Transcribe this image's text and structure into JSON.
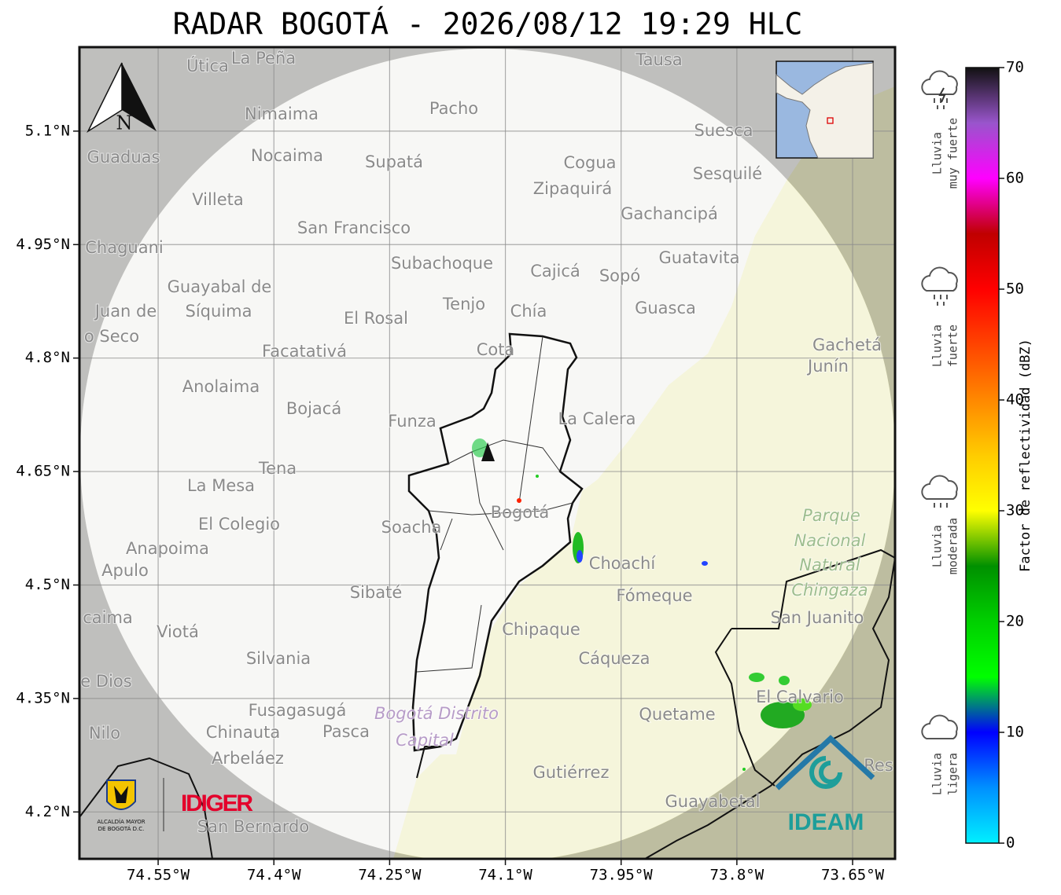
{
  "title": "RADAR BOGOTÁ - 2026/08/12 19:29 HLC",
  "map": {
    "lon_range": [
      -74.652,
      -73.595
    ],
    "lat_range": [
      4.138,
      5.211
    ],
    "lat_ticks": [
      {
        "value": 4.2,
        "label": "4.2°N"
      },
      {
        "value": 4.35,
        "label": "4.35°N"
      },
      {
        "value": 4.5,
        "label": "4.5°N"
      },
      {
        "value": 4.65,
        "label": "4.65°N"
      },
      {
        "value": 4.8,
        "label": "4.8°N"
      },
      {
        "value": 4.95,
        "label": "4.95°N"
      },
      {
        "value": 5.1,
        "label": "5.1°N"
      }
    ],
    "lon_ticks": [
      {
        "value": -74.55,
        "label": "74.55°W"
      },
      {
        "value": -74.4,
        "label": "74.4°W"
      },
      {
        "value": -74.25,
        "label": "74.25°W"
      },
      {
        "value": -74.1,
        "label": "74.1°W"
      },
      {
        "value": -73.95,
        "label": "73.95°W"
      },
      {
        "value": -73.8,
        "label": "73.8°W"
      },
      {
        "value": -73.65,
        "label": "73.65°W"
      }
    ],
    "north": "N",
    "places": [
      "Útica",
      "La Peña",
      "Tausa",
      "Pacho",
      "Nimaima",
      "Suesca",
      "Guaduas",
      "Nocaima",
      "Supatá",
      "Cogua",
      "Sesquilé",
      "Zipaquirá",
      "Villeta",
      "Gachancipá",
      "San Francisco",
      "Chaguani",
      "Guatavita",
      "Subachoque",
      "Cajicá",
      "Sopó",
      "Guayabal de",
      "Síquima",
      "Tenjo",
      "Chía",
      "Guasca",
      "Juan de",
      "El Rosal",
      "o Seco",
      "Cota",
      "Gachetá",
      "Junín",
      "Facatativá",
      "Anolaima",
      "Bojacá",
      "Funza",
      "La Calera",
      "Tena",
      "La Mesa",
      "Bogotá",
      "Parque",
      "El Colegio",
      "Soacha",
      "Nacional",
      "Anapoima",
      "Natural",
      "Apulo",
      "Choachí",
      "Chingaza",
      "Fómeque",
      "Sibaté",
      "San Juanito",
      "caima",
      "Viotá",
      "Chipaque",
      "Silvania",
      "Cáqueza",
      "e Dios",
      "El Calvario",
      "Fusagasugá",
      "Bogotá Distrito",
      "Quetame",
      "Nilo",
      "Chinauta",
      "Pasca",
      "Capital",
      "Arbeláez",
      "Gutiérrez",
      "Guayabetal",
      "San Bernardo",
      "Res"
    ]
  },
  "colorbar": {
    "label": "Factor de reflectividad (dBZ)",
    "range": [
      0,
      70
    ],
    "ticks": [
      0,
      10,
      20,
      30,
      40,
      50,
      60,
      70
    ],
    "colors": [
      "#00f0ff",
      "#0090ff",
      "#0000ff",
      "#00ff00",
      "#00d000",
      "#009000",
      "#ffff00",
      "#ffcc00",
      "#ff8800",
      "#ff4400",
      "#ff0000",
      "#c00000",
      "#ff00ff",
      "#9955cc",
      "#111111"
    ]
  },
  "rain_legend": [
    [
      "Lluvia",
      "muy fuerte"
    ],
    [
      "Lluvia",
      "fuerte"
    ],
    [
      "Lluvia",
      "moderada"
    ],
    [
      "Lluvia",
      "ligera"
    ]
  ],
  "logos": {
    "alcaldia": [
      "ALCALDÍA MAYOR",
      "DE BOGOTÁ D.C."
    ],
    "idiger": "IDIGER",
    "ideam": "IDEAM"
  }
}
